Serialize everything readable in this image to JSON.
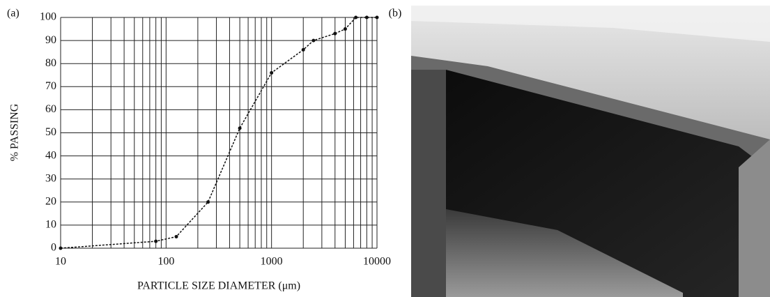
{
  "chart_data": {
    "type": "line",
    "panel_label": "(a)",
    "xlabel": "PARTICLE SIZE DIAMETER (μm)",
    "ylabel": "% PASSING",
    "x": [
      10,
      80,
      125,
      250,
      500,
      1000,
      2000,
      2500,
      4000,
      5000,
      6300,
      8000,
      10000
    ],
    "values": [
      0,
      3,
      5,
      20,
      52,
      76,
      86,
      90,
      93,
      95,
      100,
      100,
      100
    ],
    "color": "#111",
    "xscale": "log",
    "xlim": [
      10,
      10000
    ],
    "ylim": [
      0,
      100
    ],
    "xticks": [
      10,
      100,
      1000,
      10000
    ],
    "xminor": [
      20,
      30,
      40,
      50,
      60,
      70,
      80,
      90,
      200,
      300,
      400,
      500,
      600,
      700,
      800,
      900,
      2000,
      3000,
      4000,
      5000,
      6000,
      7000,
      8000,
      9000
    ],
    "yticks": [
      0,
      10,
      20,
      30,
      40,
      50,
      60,
      70,
      80,
      90,
      100
    ],
    "grid": true
  },
  "photo": {
    "panel_label": "(b)"
  }
}
